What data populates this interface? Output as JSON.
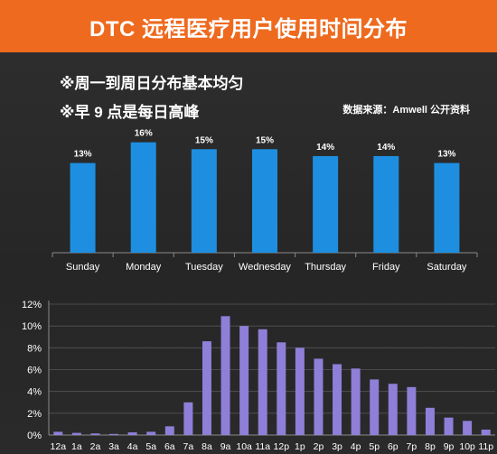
{
  "title": "DTC 远程医疗用户使用时间分布",
  "notes": [
    "※周一到周日分布基本均匀",
    "※早 9 点是每日高峰"
  ],
  "source": "数据来源：Amwell 公开资料",
  "colors": {
    "banner": "#ee6a1e",
    "weekly_bar": "#1e8fe0",
    "hourly_bar": "#8f7fd8"
  },
  "chart_data": [
    {
      "type": "bar",
      "categories": [
        "Sunday",
        "Monday",
        "Tuesday",
        "Wednesday",
        "Thursday",
        "Friday",
        "Saturday"
      ],
      "values": [
        13,
        16,
        15,
        15,
        14,
        14,
        13
      ],
      "data_labels": [
        "13%",
        "16%",
        "15%",
        "15%",
        "14%",
        "14%",
        "13%"
      ],
      "ylim": [
        0,
        17
      ],
      "grid": false
    },
    {
      "type": "bar",
      "categories": [
        "12a",
        "1a",
        "2a",
        "3a",
        "4a",
        "5a",
        "6a",
        "7a",
        "8a",
        "9a",
        "10a",
        "11a",
        "12p",
        "1p",
        "2p",
        "3p",
        "4p",
        "5p",
        "6p",
        "7p",
        "8p",
        "9p",
        "10p",
        "11p"
      ],
      "values": [
        0.3,
        0.2,
        0.15,
        0.1,
        0.25,
        0.3,
        0.8,
        3.0,
        8.6,
        10.9,
        10.0,
        9.7,
        8.5,
        8.0,
        7.0,
        6.5,
        6.1,
        5.1,
        4.7,
        4.4,
        2.5,
        1.6,
        1.3,
        0.5
      ],
      "yticks": [
        "0%",
        "2%",
        "4%",
        "6%",
        "8%",
        "10%",
        "12%"
      ],
      "ylim": [
        0,
        12
      ],
      "grid": true
    }
  ]
}
